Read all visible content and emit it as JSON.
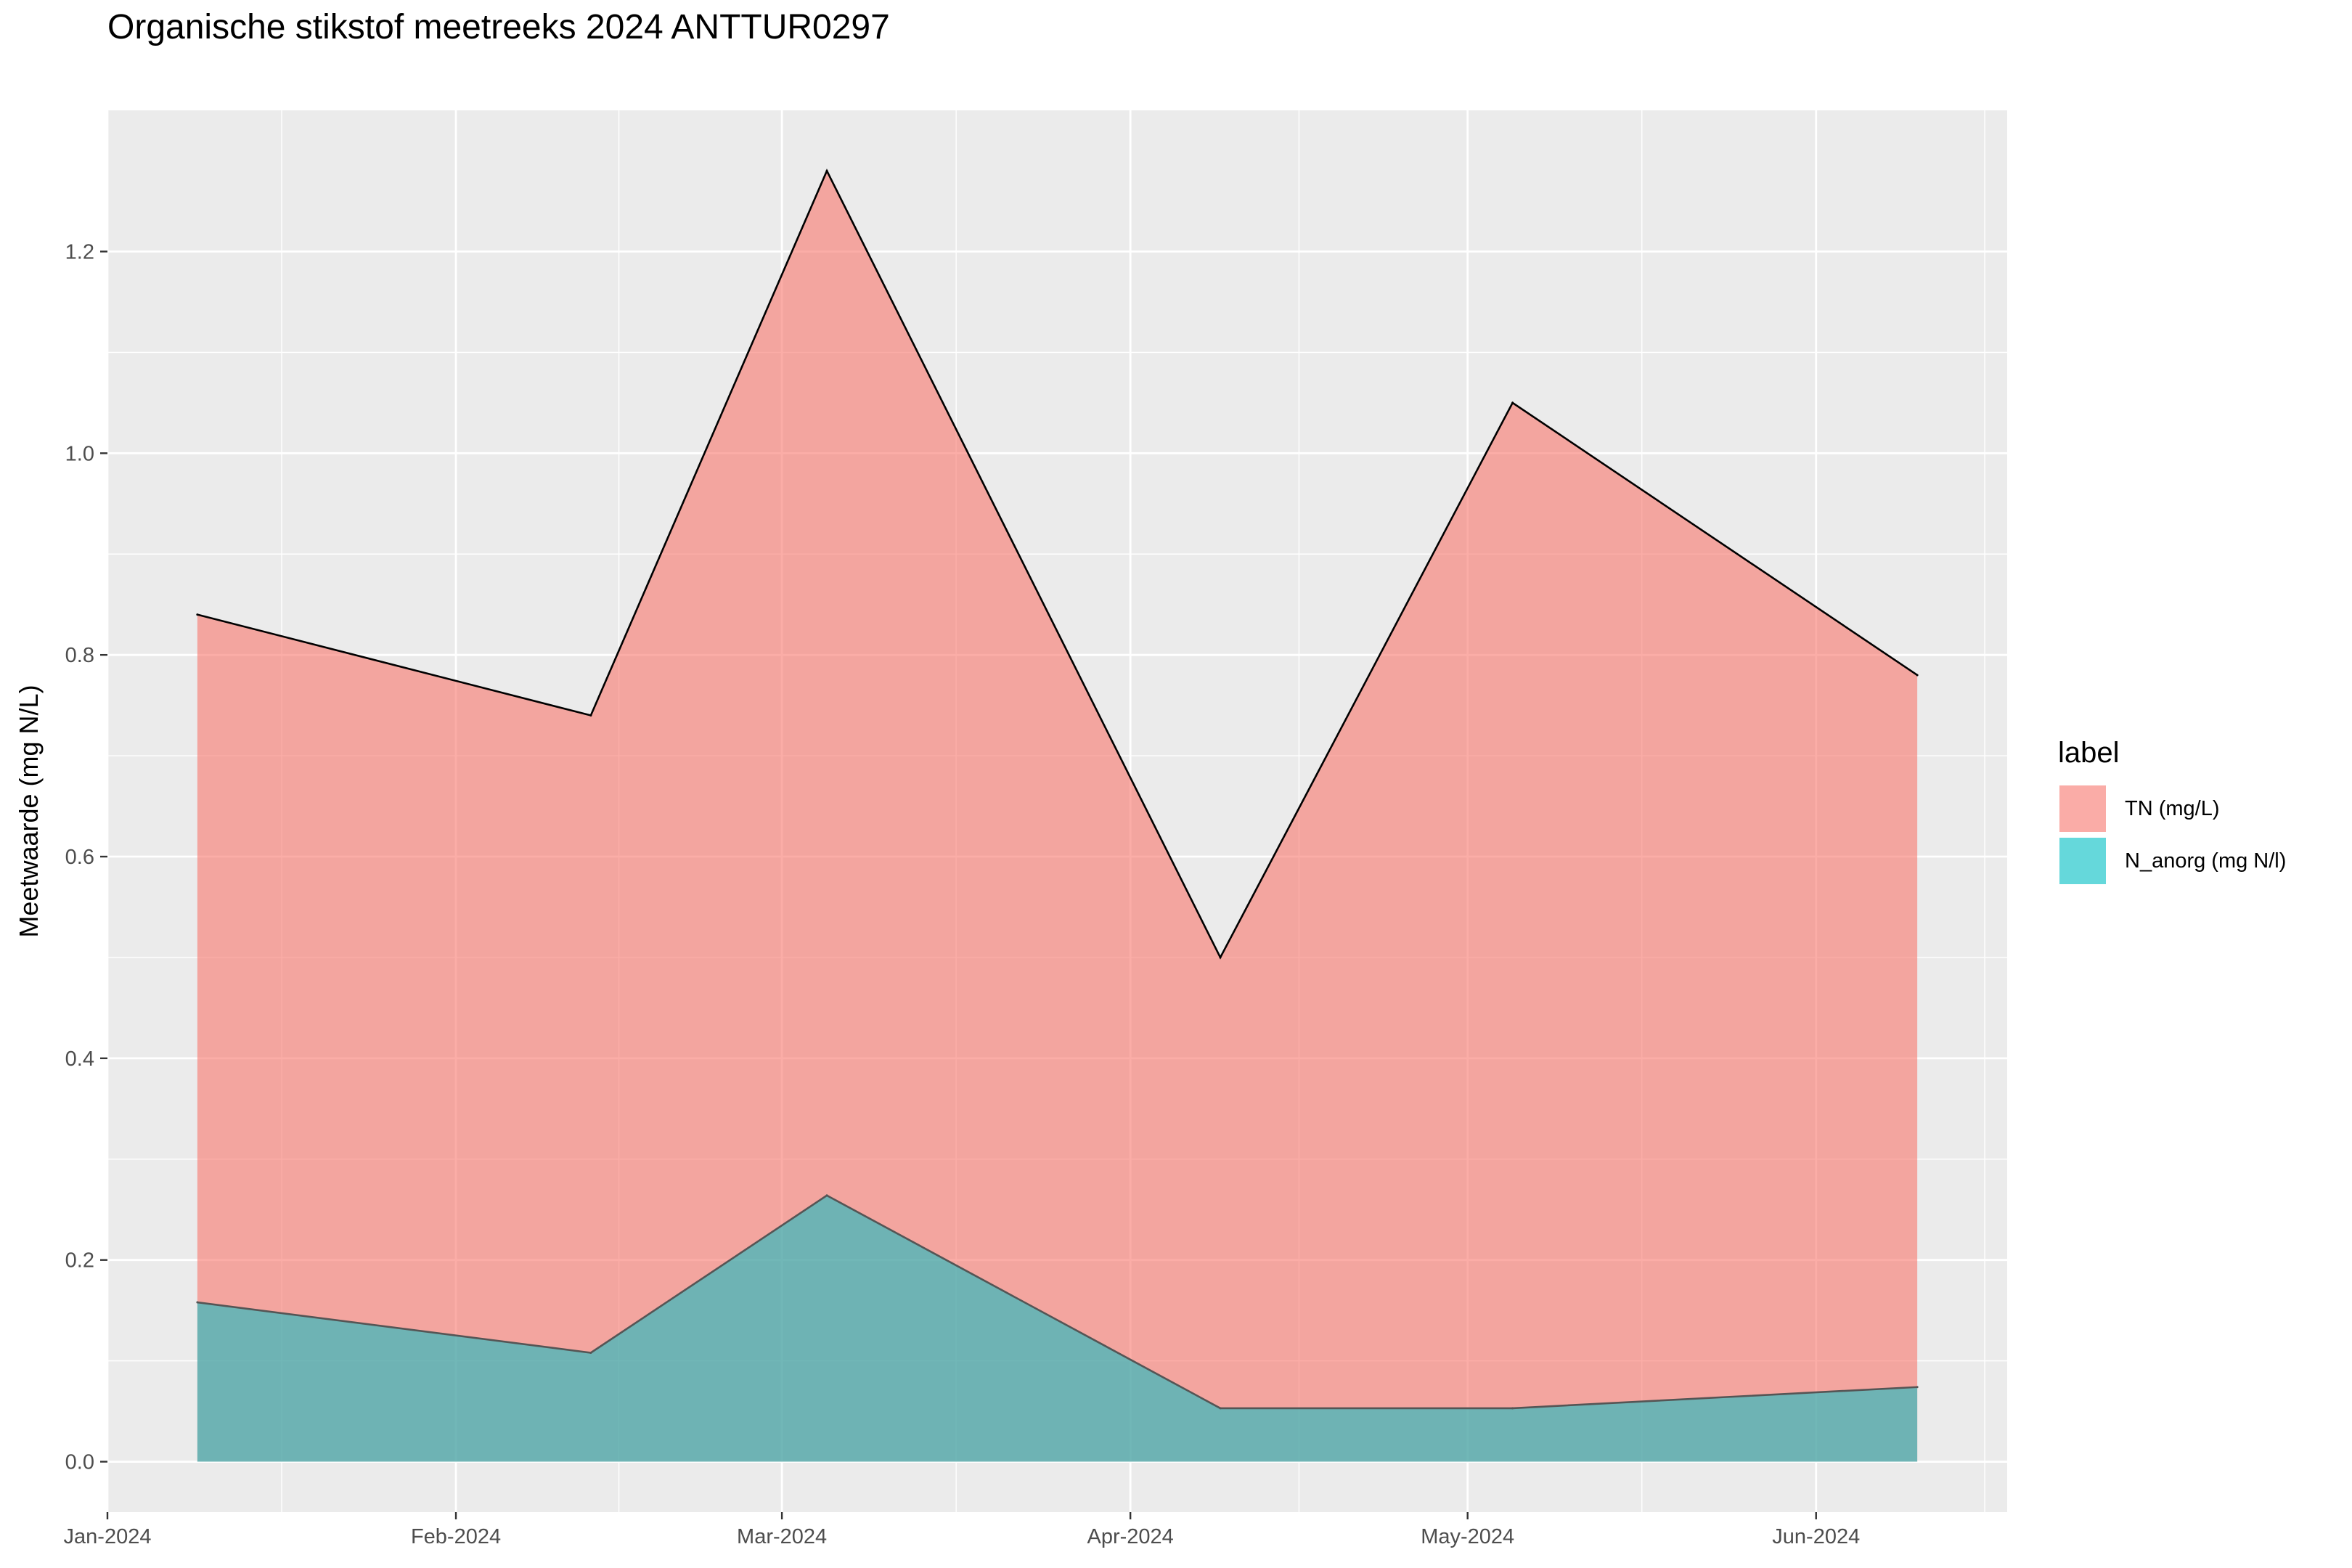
{
  "chart_data": {
    "type": "area",
    "title": "Organische stikstof meetreeks 2024 ANTTUR0297",
    "xlabel": "",
    "ylabel": "Meetwaarde (mg N/L)",
    "x": [
      "2024-01-09",
      "2024-02-13",
      "2024-03-05",
      "2024-04-09",
      "2024-05-05",
      "2024-06-10"
    ],
    "x_range": [
      "2024-01-01",
      "2024-06-18"
    ],
    "x_ticks": [
      {
        "date": "2024-01-01",
        "label": "Jan-2024"
      },
      {
        "date": "2024-02-01",
        "label": "Feb-2024"
      },
      {
        "date": "2024-03-01",
        "label": "Mar-2024"
      },
      {
        "date": "2024-04-01",
        "label": "Apr-2024"
      },
      {
        "date": "2024-05-01",
        "label": "May-2024"
      },
      {
        "date": "2024-06-01",
        "label": "Jun-2024"
      }
    ],
    "ylim": [
      -0.05,
      1.34
    ],
    "y_ticks": [
      0.0,
      0.2,
      0.4,
      0.6,
      0.8,
      1.0,
      1.2
    ],
    "y_tick_labels": [
      "0.0",
      "0.2",
      "0.4",
      "0.6",
      "0.8",
      "1.0",
      "1.2"
    ],
    "grid": true,
    "legend_title": "label",
    "legend_position": "right",
    "series": [
      {
        "name": "TN (mg/L)",
        "color": "#F8766D",
        "values": [
          0.84,
          0.74,
          1.28,
          0.5,
          1.05,
          0.78
        ]
      },
      {
        "name": "N_anorg (mg N/l)",
        "color": "#00BFC4",
        "values": [
          0.158,
          0.108,
          0.264,
          0.053,
          0.053,
          0.074
        ]
      }
    ]
  }
}
